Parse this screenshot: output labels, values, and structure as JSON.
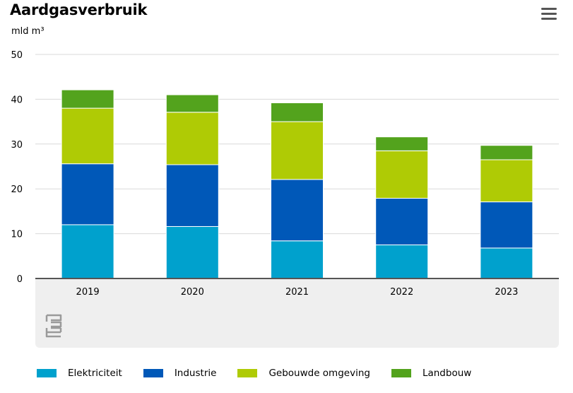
{
  "title": "Aardgasverbruik",
  "unit_label": "mld m³",
  "menu_icon": "hamburger-menu-icon",
  "logo_icon": "cbs-logo-icon",
  "colors": {
    "Elektriciteit": "#00a1cd",
    "Industrie": "#0058b8",
    "Gebouwde omgeving": "#afcb05",
    "Landbouw": "#53a31d",
    "grid": "#d9d9d9",
    "axis": "#555555",
    "footer_bg": "#efefef"
  },
  "chart_data": {
    "type": "bar",
    "stacked": true,
    "title": "Aardgasverbruik",
    "ylabel": "mld m³",
    "ylim": [
      0,
      50
    ],
    "yticks": [
      0,
      10,
      20,
      30,
      40,
      50
    ],
    "grid": true,
    "legend_position": "bottom",
    "categories": [
      "2019",
      "2020",
      "2021",
      "2022",
      "2023"
    ],
    "series": [
      {
        "name": "Elektriciteit",
        "values": [
          12.0,
          11.6,
          8.4,
          7.5,
          6.8
        ]
      },
      {
        "name": "Industrie",
        "values": [
          13.6,
          13.8,
          13.7,
          10.4,
          10.3
        ]
      },
      {
        "name": "Gebouwde omgeving",
        "values": [
          12.4,
          11.7,
          12.9,
          10.6,
          9.4
        ]
      },
      {
        "name": "Landbouw",
        "values": [
          4.1,
          3.9,
          4.2,
          3.1,
          3.2
        ]
      }
    ]
  }
}
